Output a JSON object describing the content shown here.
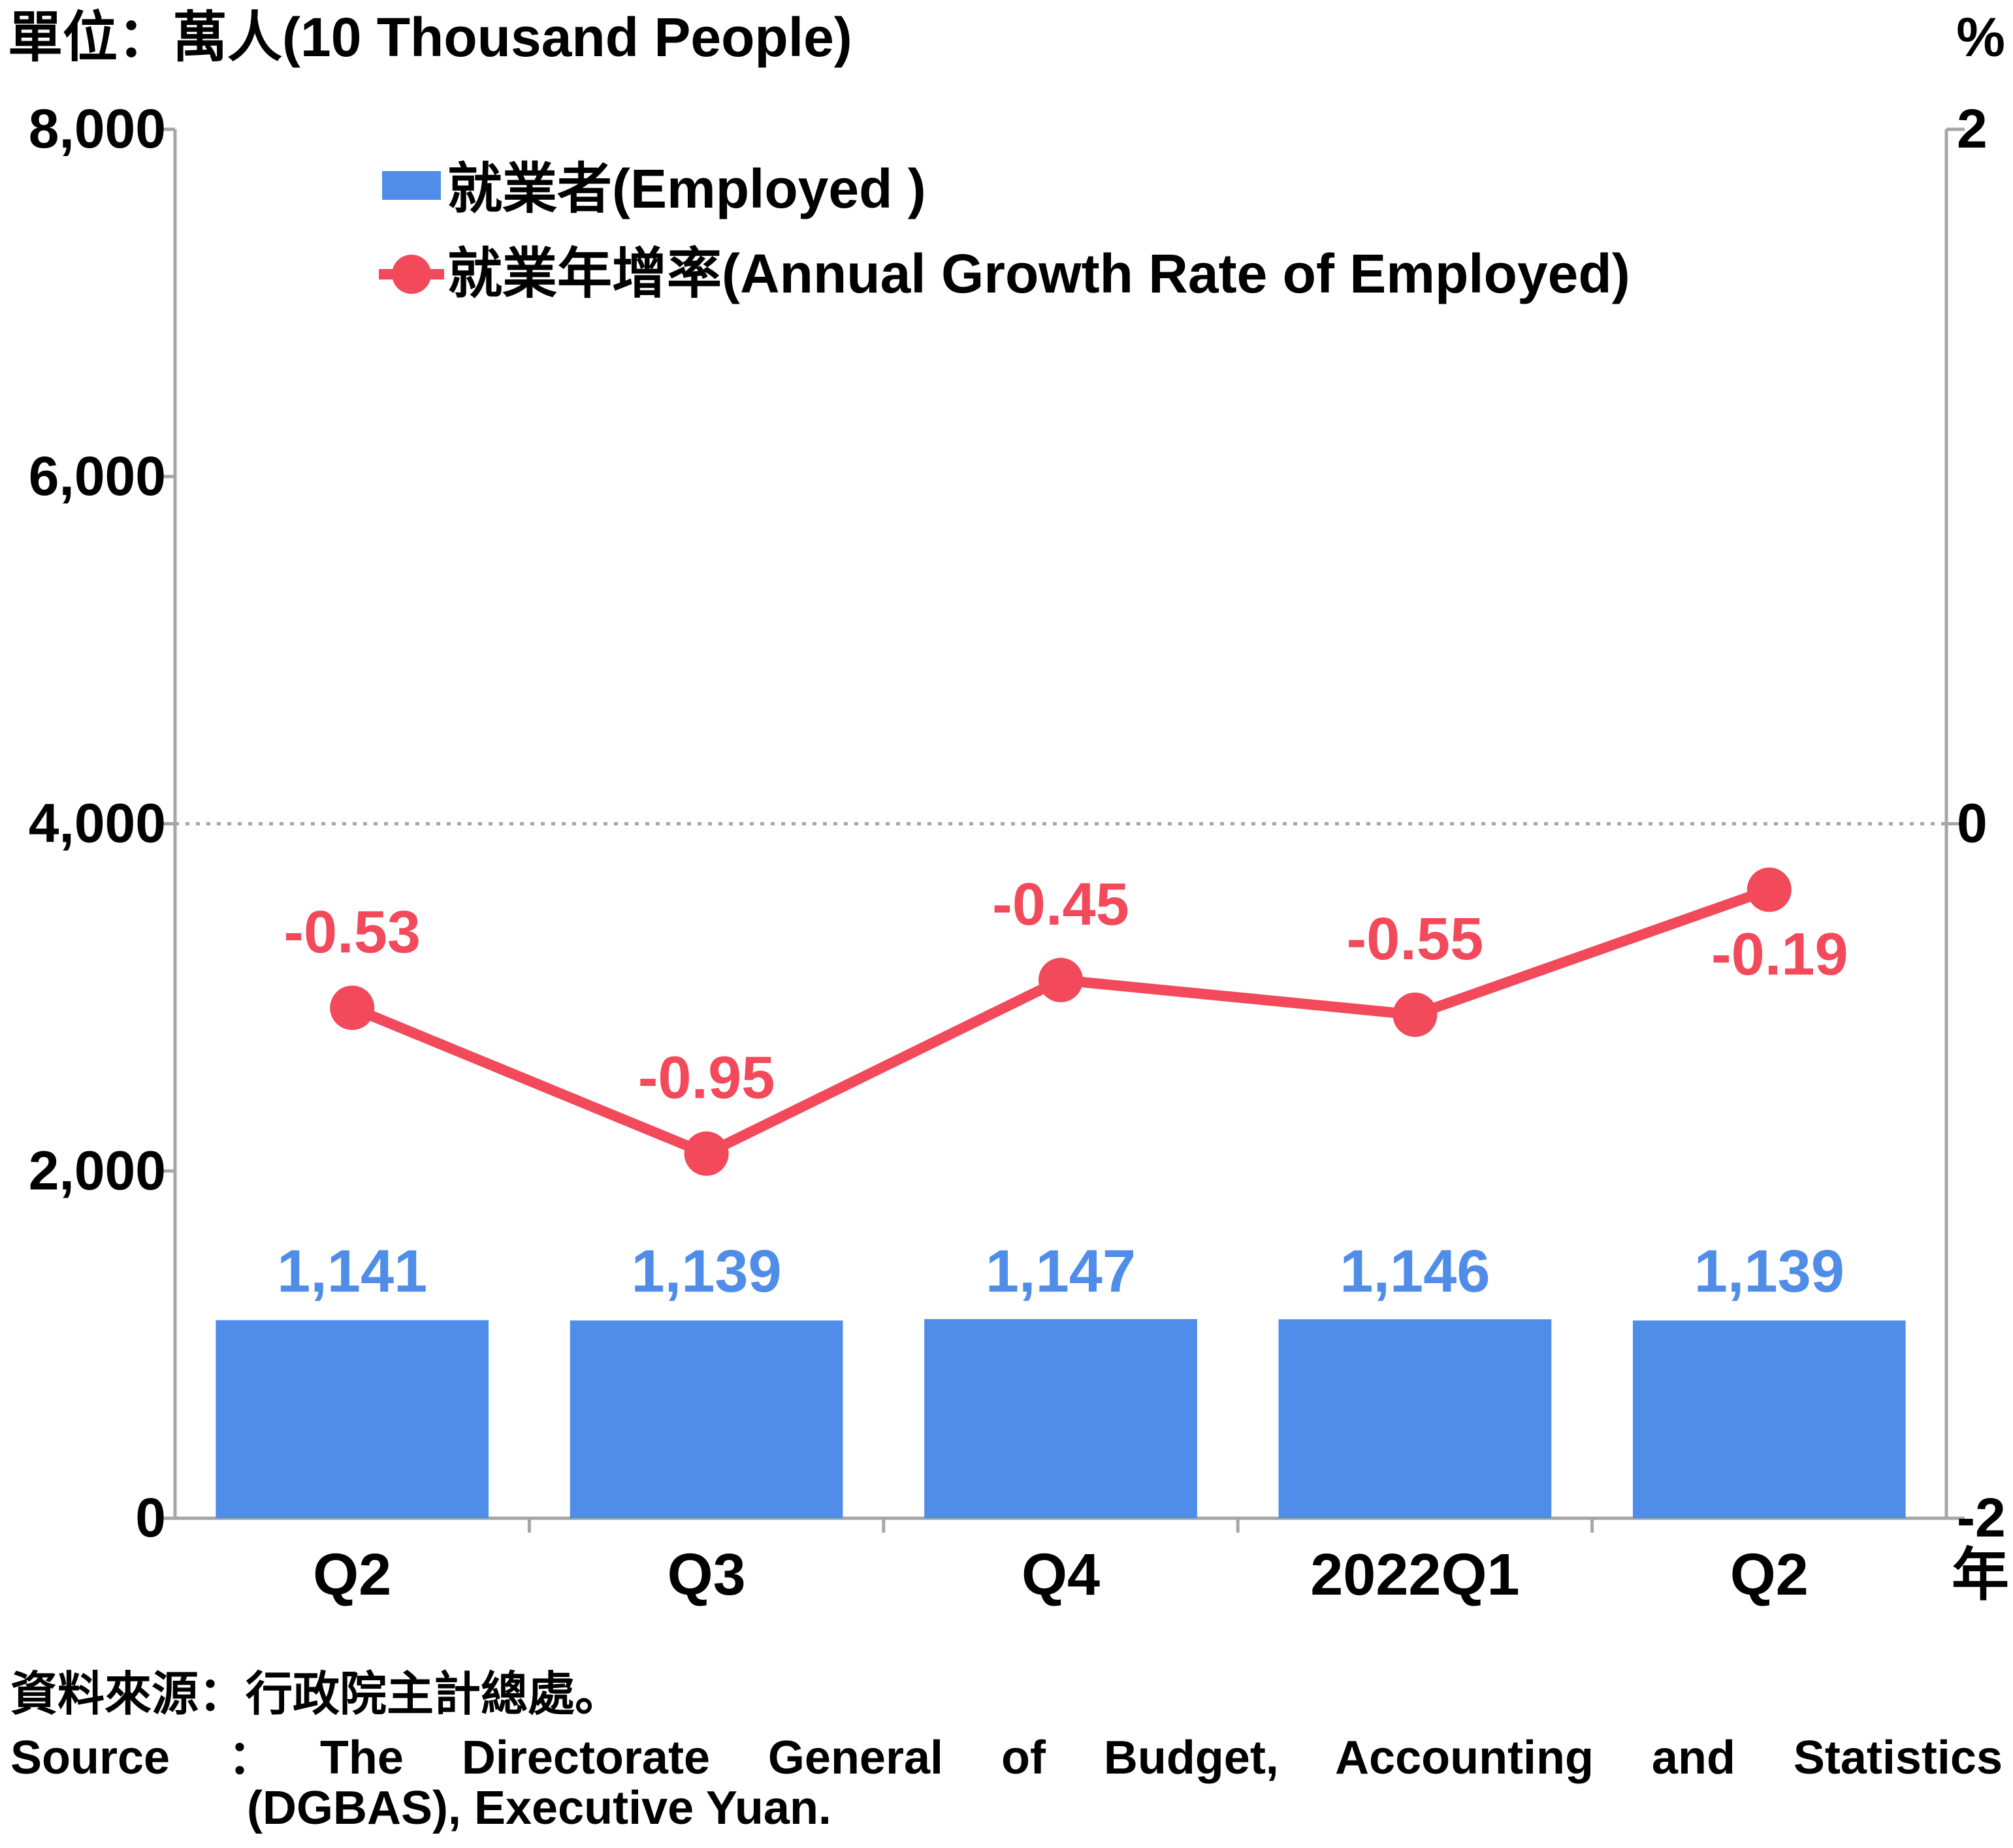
{
  "chart_data": {
    "type": "bar+line",
    "categories": [
      "Q2",
      "Q3",
      "Q4",
      "2022Q1",
      "Q2"
    ],
    "series": [
      {
        "name": "就業者(Employed )",
        "type": "bar",
        "axis": "left",
        "color": "#4f8de8",
        "values": [
          1141,
          1139,
          1147,
          1146,
          1139
        ],
        "labels": [
          "1,141",
          "1,139",
          "1,147",
          "1,146",
          "1,139"
        ]
      },
      {
        "name": "就業年增率(Annual Growth Rate of Employed)",
        "type": "line",
        "axis": "right",
        "color": "#f2495b",
        "values": [
          -0.53,
          -0.95,
          -0.45,
          -0.55,
          -0.19
        ],
        "labels": [
          "-0.53",
          "-0.95",
          "-0.45",
          "-0.55",
          "-0.19"
        ]
      }
    ],
    "y_left": {
      "unit_label": "單位：萬人(10 Thousand People)",
      "lim": [
        0,
        8000
      ],
      "ticks": [
        0,
        2000,
        4000,
        6000,
        8000
      ],
      "tick_labels": [
        "0",
        "2,000",
        "4,000",
        "6,000",
        "8,000"
      ]
    },
    "y_right": {
      "unit_label": "%",
      "lim": [
        -2,
        2
      ],
      "ticks": [
        -2,
        0,
        2
      ],
      "tick_labels": [
        "-2",
        "0",
        "2"
      ]
    },
    "x_unit_label": "年",
    "zero_reference_line": "dotted",
    "legend_position": "top-left",
    "grid": false
  },
  "source": {
    "zh": "資料來源：行政院主計總處。",
    "en_line1": "Source ：The Directorate General of Budget, Accounting and Statistics",
    "en_line2": "(DGBAS), Executive Yuan."
  },
  "colors": {
    "axis": "#a6a6a6",
    "text": "#000000"
  }
}
